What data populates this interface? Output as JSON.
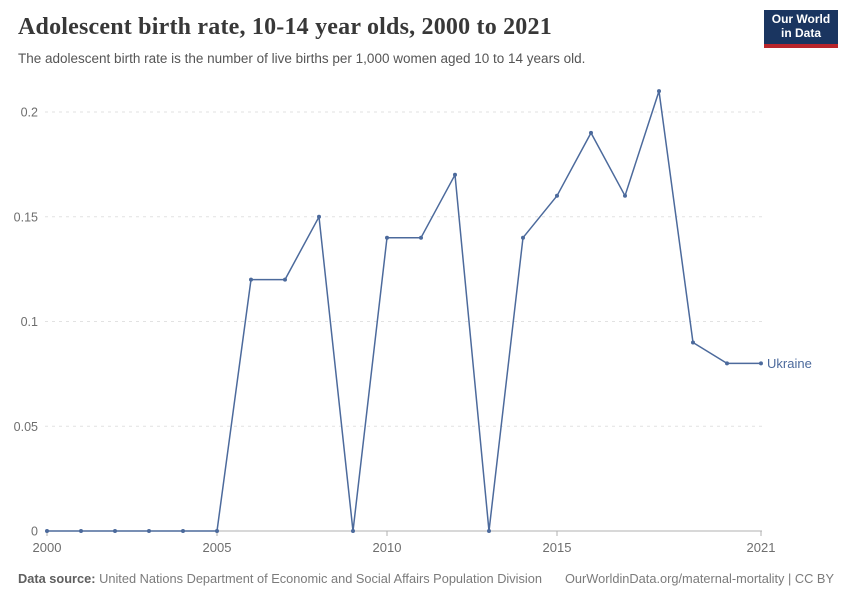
{
  "header": {
    "title": "Adolescent birth rate, 10-14 year olds, 2000 to 2021",
    "subtitle": "The adolescent birth rate is the number of live births per 1,000 women aged 10 to 14 years old.",
    "logo": {
      "line1": "Our World",
      "line2": "in Data"
    }
  },
  "chart_data": {
    "type": "line",
    "title": "Adolescent birth rate, 10-14 year olds, 2000 to 2021",
    "ylabel": "",
    "xlabel": "",
    "x": [
      2000,
      2001,
      2002,
      2003,
      2004,
      2005,
      2006,
      2007,
      2008,
      2009,
      2010,
      2011,
      2012,
      2013,
      2014,
      2015,
      2016,
      2017,
      2018,
      2019,
      2020,
      2021
    ],
    "series": [
      {
        "name": "Ukraine",
        "color": "#4c6a9c",
        "values": [
          0,
          0,
          0,
          0,
          0,
          0,
          0.12,
          0.12,
          0.15,
          0,
          0.14,
          0.14,
          0.17,
          0,
          0.14,
          0.16,
          0.19,
          0.16,
          0.21,
          0.09,
          0.08,
          0.08
        ]
      }
    ],
    "ylim": [
      0,
      0.21
    ],
    "yticks": [
      0,
      0.05,
      0.1,
      0.15,
      0.2
    ],
    "ytick_labels": [
      "0",
      "0.05",
      "0.1",
      "0.15",
      "0.2"
    ],
    "xticks": [
      2000,
      2005,
      2010,
      2015,
      2021
    ],
    "grid": true,
    "legend_position": "end-of-line",
    "end_label": "Ukraine"
  },
  "footer": {
    "source_label": "Data source:",
    "source_text": " United Nations Department of Economic and Social Affairs Population Division",
    "right_text": "OurWorldinData.org/maternal-mortality | CC BY"
  },
  "colors": {
    "line": "#4c6a9c",
    "logo_bg": "#1a3560",
    "logo_stripe": "#b9252b",
    "grid": "#e2e2e2",
    "axis": "#b0b0b0",
    "tick_label": "#6e6e6e"
  }
}
